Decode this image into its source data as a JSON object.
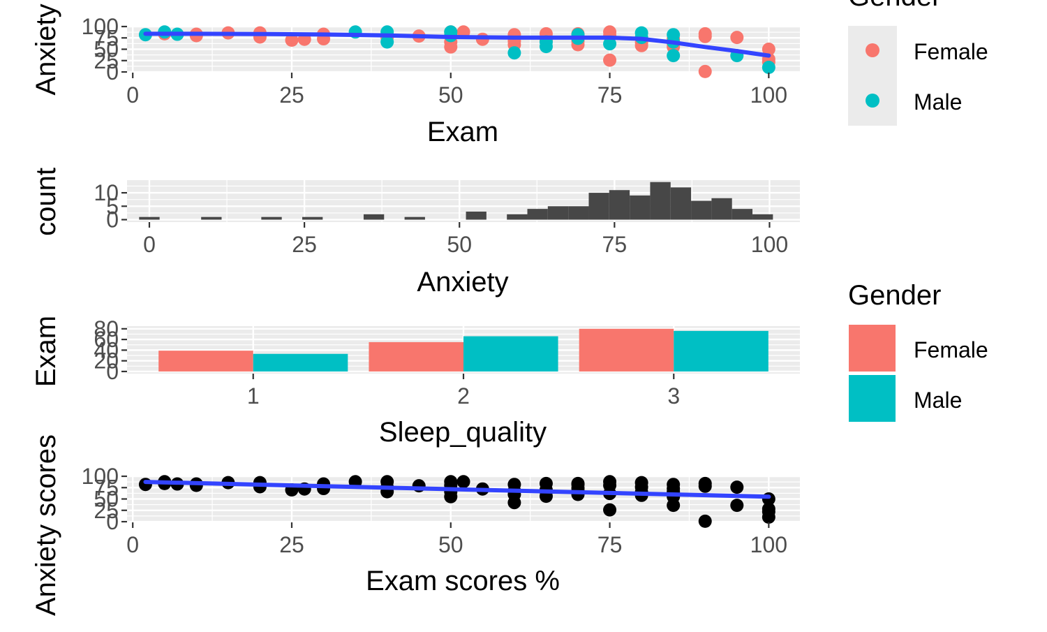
{
  "colors": {
    "female": "#F8766D",
    "male": "#00BFC4",
    "smooth": "#3344FF",
    "hist_bar": "#474747",
    "black_points": "#000000",
    "panel_bg": "#EBEBEB",
    "grid": "#FFFFFF",
    "text": "#000000",
    "tick_text": "#4D4D4D"
  },
  "legends": {
    "points_legend": {
      "title": "Gender",
      "entries": [
        "Female",
        "Male"
      ]
    },
    "bars_legend": {
      "title": "Gender",
      "entries": [
        "Female",
        "Male"
      ]
    }
  },
  "chart_data": [
    {
      "id": "scatter_gender",
      "type": "scatter",
      "title": "",
      "xlabel": "Exam",
      "ylabel": "Anxiety",
      "xlim": [
        -0.9,
        104.9
      ],
      "ylim": [
        -1.5,
        100
      ],
      "xticks": [
        0,
        25,
        50,
        75,
        100
      ],
      "yticks": [
        0,
        25,
        50,
        75,
        100
      ],
      "xtick_labels": [
        "0",
        "25",
        "50",
        "75",
        "100"
      ],
      "ytick_labels": [
        "0",
        "25",
        "50",
        "75",
        "100"
      ],
      "series": [
        {
          "name": "Female",
          "points": [
            [
              5,
              84
            ],
            [
              10,
              83
            ],
            [
              10,
              80
            ],
            [
              15,
              86
            ],
            [
              20,
              86
            ],
            [
              20,
              77
            ],
            [
              25,
              70
            ],
            [
              27,
              72
            ],
            [
              30,
              83
            ],
            [
              30,
              73
            ],
            [
              40,
              76
            ],
            [
              45,
              79
            ],
            [
              50,
              88
            ],
            [
              50,
              66
            ],
            [
              50,
              55
            ],
            [
              52,
              88
            ],
            [
              55,
              72
            ],
            [
              60,
              82
            ],
            [
              60,
              68
            ],
            [
              60,
              60
            ],
            [
              65,
              84
            ],
            [
              65,
              70
            ],
            [
              70,
              84
            ],
            [
              70,
              68
            ],
            [
              70,
              60
            ],
            [
              75,
              88
            ],
            [
              75,
              80
            ],
            [
              75,
              26
            ],
            [
              80,
              65
            ],
            [
              80,
              58
            ],
            [
              85,
              73
            ],
            [
              85,
              62
            ],
            [
              85,
              55
            ],
            [
              90,
              84
            ],
            [
              90,
              78
            ],
            [
              90,
              1
            ],
            [
              95,
              76
            ],
            [
              100,
              50
            ],
            [
              100,
              28
            ],
            [
              100,
              22
            ]
          ]
        },
        {
          "name": "Male",
          "points": [
            [
              2,
              82
            ],
            [
              5,
              88
            ],
            [
              7,
              83
            ],
            [
              35,
              88
            ],
            [
              40,
              88
            ],
            [
              40,
              66
            ],
            [
              50,
              88
            ],
            [
              50,
              80
            ],
            [
              60,
              42
            ],
            [
              65,
              56
            ],
            [
              65,
              66
            ],
            [
              70,
              82
            ],
            [
              70,
              74
            ],
            [
              75,
              62
            ],
            [
              80,
              86
            ],
            [
              80,
              76
            ],
            [
              85,
              82
            ],
            [
              85,
              66
            ],
            [
              85,
              36
            ],
            [
              95,
              36
            ],
            [
              100,
              10
            ]
          ]
        }
      ],
      "smooth": {
        "name": "loess",
        "x": [
          2,
          10,
          20,
          30,
          40,
          50,
          60,
          70,
          75,
          80,
          85,
          90,
          95,
          100
        ],
        "y": [
          84,
          84,
          83.5,
          82.5,
          80.5,
          77,
          75.5,
          75.5,
          75.5,
          73,
          65,
          55,
          46,
          36
        ]
      }
    },
    {
      "id": "hist_anxiety",
      "type": "bar",
      "title": "",
      "xlabel": "Anxiety",
      "ylabel": "count",
      "xlim": [
        -3.6,
        104.9
      ],
      "ylim": [
        -0.9,
        14.7
      ],
      "xticks": [
        0,
        25,
        50,
        75,
        100
      ],
      "yticks": [
        0,
        5,
        10
      ],
      "xtick_labels": [
        "0",
        "25",
        "50",
        "75",
        "100"
      ],
      "ytick_labels": [
        "0",
        "5",
        "10"
      ],
      "bin_width": 3.3,
      "bin_centers": [
        0,
        10,
        19.7,
        26.3,
        36.2,
        42.8,
        52.7,
        59.3,
        62.6,
        65.9,
        69.2,
        72.5,
        75.8,
        79.1,
        82.4,
        85.7,
        89,
        92.3,
        95.6,
        98.9
      ],
      "values": [
        1,
        1,
        1,
        1,
        2,
        1,
        3,
        2,
        4,
        5,
        5,
        10,
        11,
        9,
        14,
        12,
        7,
        8,
        4,
        2
      ]
    },
    {
      "id": "bars_sleep",
      "type": "bar",
      "title": "",
      "xlabel": "Sleep_quality",
      "ylabel": "Exam",
      "ylim": [
        -4,
        85
      ],
      "categories": [
        "1",
        "2",
        "3"
      ],
      "yticks": [
        0,
        20,
        40,
        60,
        80
      ],
      "ytick_labels": [
        "0",
        "20",
        "40",
        "60",
        "80"
      ],
      "series": [
        {
          "name": "Female",
          "values": [
            39,
            55,
            80
          ]
        },
        {
          "name": "Male",
          "values": [
            33,
            66,
            76
          ]
        }
      ]
    },
    {
      "id": "scatter_all",
      "type": "scatter",
      "title": "",
      "xlabel": "Exam scores %",
      "ylabel": "Anxiety scores",
      "xlim": [
        -0.9,
        104.9
      ],
      "ylim": [
        -1.5,
        100
      ],
      "xticks": [
        0,
        25,
        50,
        75,
        100
      ],
      "yticks": [
        0,
        25,
        50,
        75,
        100
      ],
      "xtick_labels": [
        "0",
        "25",
        "50",
        "75",
        "100"
      ],
      "ytick_labels": [
        "0",
        "25",
        "50",
        "75",
        "100"
      ],
      "series": [
        {
          "name": "All",
          "points": [
            [
              2,
              82
            ],
            [
              5,
              88
            ],
            [
              5,
              84
            ],
            [
              7,
              83
            ],
            [
              10,
              83
            ],
            [
              10,
              80
            ],
            [
              15,
              86
            ],
            [
              20,
              86
            ],
            [
              20,
              77
            ],
            [
              25,
              70
            ],
            [
              27,
              72
            ],
            [
              30,
              83
            ],
            [
              30,
              73
            ],
            [
              35,
              88
            ],
            [
              40,
              88
            ],
            [
              40,
              76
            ],
            [
              40,
              66
            ],
            [
              45,
              79
            ],
            [
              50,
              88
            ],
            [
              50,
              80
            ],
            [
              50,
              66
            ],
            [
              50,
              55
            ],
            [
              52,
              88
            ],
            [
              55,
              72
            ],
            [
              60,
              82
            ],
            [
              60,
              68
            ],
            [
              60,
              60
            ],
            [
              60,
              42
            ],
            [
              65,
              84
            ],
            [
              65,
              70
            ],
            [
              65,
              66
            ],
            [
              65,
              56
            ],
            [
              70,
              84
            ],
            [
              70,
              82
            ],
            [
              70,
              74
            ],
            [
              70,
              68
            ],
            [
              70,
              60
            ],
            [
              75,
              88
            ],
            [
              75,
              80
            ],
            [
              75,
              62
            ],
            [
              75,
              26
            ],
            [
              80,
              86
            ],
            [
              80,
              76
            ],
            [
              80,
              65
            ],
            [
              80,
              58
            ],
            [
              85,
              82
            ],
            [
              85,
              73
            ],
            [
              85,
              66
            ],
            [
              85,
              62
            ],
            [
              85,
              55
            ],
            [
              85,
              36
            ],
            [
              90,
              84
            ],
            [
              90,
              78
            ],
            [
              90,
              1
            ],
            [
              95,
              76
            ],
            [
              95,
              36
            ],
            [
              100,
              50
            ],
            [
              100,
              28
            ],
            [
              100,
              22
            ],
            [
              100,
              10
            ]
          ]
        }
      ],
      "smooth": {
        "name": "lm",
        "x": [
          2,
          100
        ],
        "y": [
          87.5,
          55
        ]
      }
    }
  ]
}
